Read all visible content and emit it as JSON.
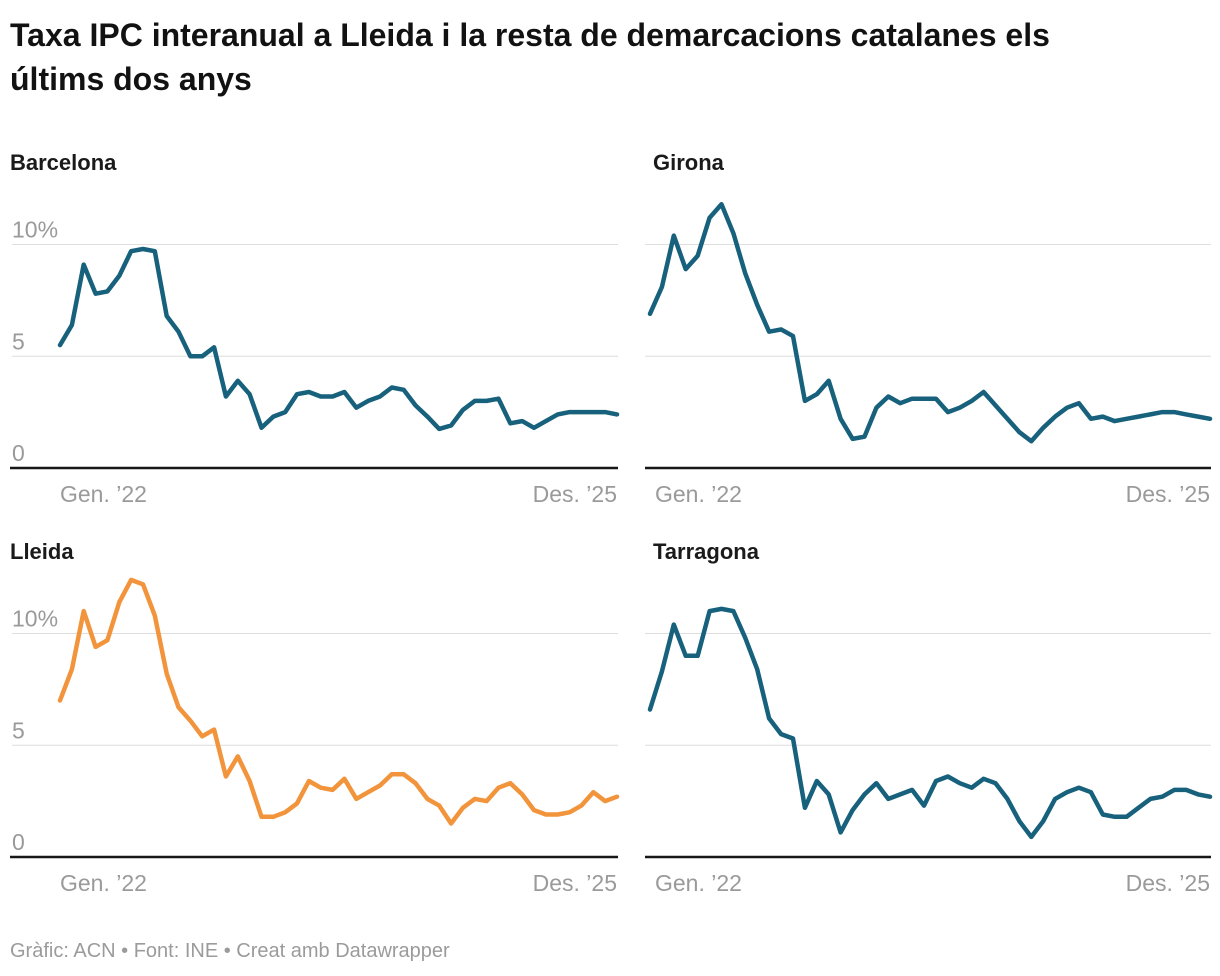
{
  "header": {
    "title": "Taxa IPC interanual a Lleida i la resta de demarcacions catalanes els últims dos anys"
  },
  "footer": {
    "text": "Gràfic: ACN • Font: INE • Creat amb Datawrapper"
  },
  "colors": {
    "teal": "#17617c",
    "orange": "#f2943c",
    "gridline": "#dedede",
    "axis_line": "#171717",
    "tick_text": "#9a9a9a",
    "title_text": "#121212"
  },
  "axis": {
    "x_first_label": "Gen. ’22",
    "x_last_label": "Des. ’25",
    "y_tick_labels": [
      "0",
      "5",
      "10%"
    ]
  },
  "chart_data": {
    "type": "line",
    "unit": "percent",
    "x": {
      "start": "Gen. 2022",
      "end": "Des. 2025",
      "frequency": "monthly",
      "n_points": 48
    },
    "ylim": [
      0,
      12.7
    ],
    "y_gridlines": [
      0,
      5,
      10
    ],
    "grid": true,
    "legend": "none",
    "panels": [
      {
        "title": "Barcelona",
        "color": "#17617c",
        "values": [
          5.5,
          6.4,
          9.1,
          7.8,
          7.9,
          8.6,
          9.7,
          9.8,
          9.7,
          6.8,
          6.1,
          5.0,
          5.0,
          5.4,
          3.2,
          3.9,
          3.3,
          1.8,
          2.3,
          2.5,
          3.3,
          3.4,
          3.2,
          3.2,
          3.4,
          2.7,
          3.0,
          3.2,
          3.6,
          3.5,
          2.8,
          2.3,
          1.75,
          1.9,
          2.6,
          3.0,
          3.0,
          3.1,
          2.0,
          2.1,
          1.8,
          2.1,
          2.4,
          2.5,
          2.5,
          2.5,
          2.5,
          2.4
        ]
      },
      {
        "title": "Girona",
        "color": "#17617c",
        "values": [
          6.9,
          8.1,
          10.4,
          8.9,
          9.5,
          11.2,
          11.8,
          10.5,
          8.7,
          7.3,
          6.1,
          6.2,
          5.9,
          3.0,
          3.3,
          3.9,
          2.2,
          1.3,
          1.4,
          2.7,
          3.2,
          2.9,
          3.1,
          3.1,
          3.1,
          2.5,
          2.7,
          3.0,
          3.4,
          2.8,
          2.2,
          1.6,
          1.2,
          1.8,
          2.3,
          2.7,
          2.9,
          2.2,
          2.3,
          2.1,
          2.2,
          2.3,
          2.4,
          2.5,
          2.5,
          2.4,
          2.3,
          2.2
        ]
      },
      {
        "title": "Lleida",
        "color": "#f2943c",
        "values": [
          7.0,
          8.4,
          11.0,
          9.4,
          9.7,
          11.4,
          12.4,
          12.2,
          10.8,
          8.2,
          6.7,
          6.1,
          5.4,
          5.7,
          3.6,
          4.5,
          3.4,
          1.8,
          1.8,
          2.0,
          2.4,
          3.4,
          3.1,
          3.0,
          3.5,
          2.6,
          2.9,
          3.2,
          3.7,
          3.7,
          3.3,
          2.6,
          2.3,
          1.5,
          2.2,
          2.6,
          2.5,
          3.1,
          3.3,
          2.8,
          2.1,
          1.9,
          1.9,
          2.0,
          2.3,
          2.9,
          2.5,
          2.7
        ]
      },
      {
        "title": "Tarragona",
        "color": "#17617c",
        "values": [
          6.6,
          8.3,
          10.4,
          9.0,
          9.0,
          11.0,
          11.1,
          11.0,
          9.8,
          8.4,
          6.2,
          5.5,
          5.3,
          2.2,
          3.4,
          2.8,
          1.1,
          2.1,
          2.8,
          3.3,
          2.6,
          2.8,
          3.0,
          2.3,
          3.4,
          3.6,
          3.3,
          3.1,
          3.5,
          3.3,
          2.6,
          1.6,
          0.9,
          1.6,
          2.6,
          2.9,
          3.1,
          2.9,
          1.9,
          1.8,
          1.8,
          2.2,
          2.6,
          2.7,
          3.0,
          3.0,
          2.8,
          2.7
        ]
      }
    ]
  }
}
